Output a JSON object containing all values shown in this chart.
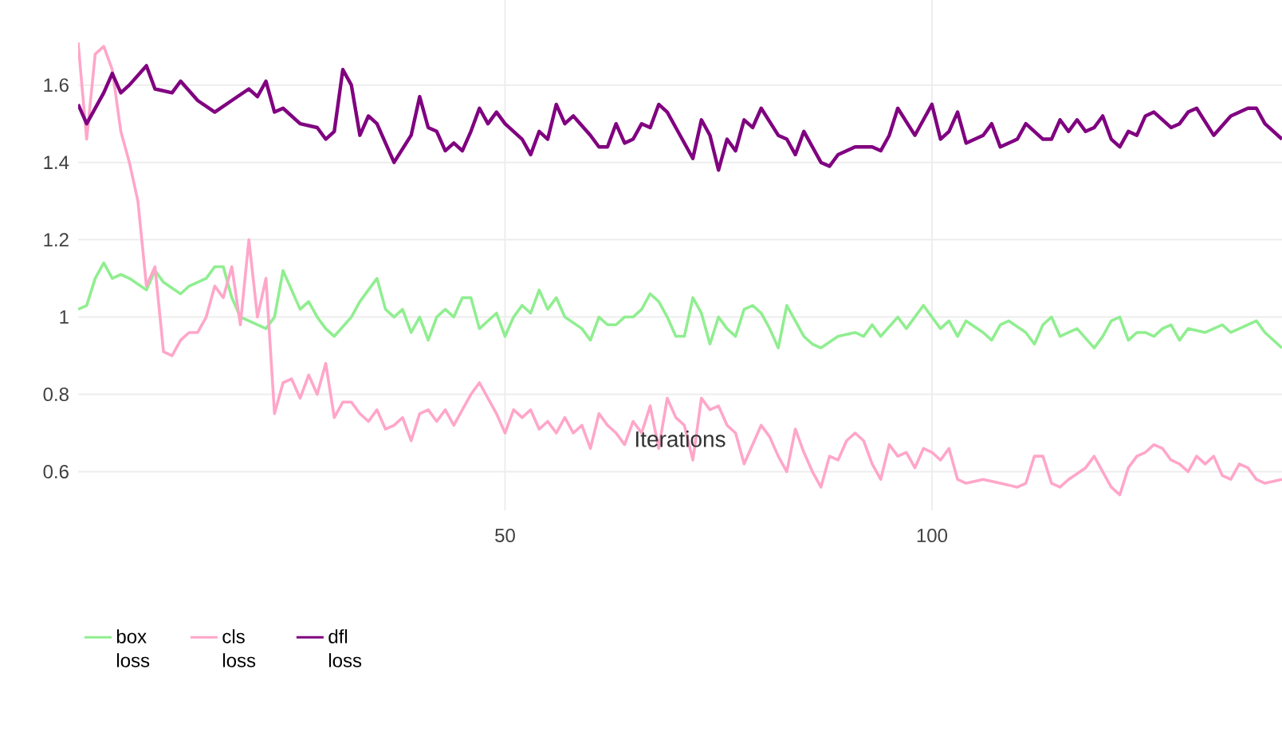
{
  "chart_data": {
    "type": "line",
    "xlabel": "Iterations",
    "xlim": [
      0,
      141
    ],
    "ylim": [
      0.5,
      1.82
    ],
    "xticks": [
      50,
      100
    ],
    "yticks": [
      0.6,
      0.8,
      1,
      1.2,
      1.4,
      1.6
    ],
    "grid": true,
    "legend": "bottom left",
    "line_style": "solid",
    "series": [
      {
        "name": "box loss",
        "color": "#90ee90",
        "x": [
          0,
          1,
          2,
          3,
          4,
          5,
          6,
          8,
          9,
          10,
          12,
          13,
          15,
          16,
          17,
          18,
          19,
          20,
          22,
          23,
          24,
          26,
          27,
          28,
          29,
          30,
          32,
          33,
          35,
          36,
          37,
          38,
          39,
          40,
          41,
          42,
          43,
          44,
          45,
          46,
          47,
          48,
          49,
          50,
          51,
          52,
          53,
          54,
          55,
          56,
          57,
          59,
          60,
          61,
          62,
          63,
          64,
          65,
          66,
          67,
          68,
          69,
          70,
          71,
          72,
          73,
          74,
          75,
          76,
          77,
          78,
          79,
          80,
          81,
          82,
          83,
          84,
          85,
          86,
          87,
          89,
          91,
          92,
          93,
          94,
          96,
          97,
          99,
          101,
          102,
          103,
          104,
          106,
          107,
          108,
          109,
          111,
          112,
          113,
          114,
          115,
          116,
          117,
          119,
          120,
          121,
          122,
          123,
          124,
          125,
          126,
          127,
          128,
          129,
          130,
          132,
          133,
          134,
          135,
          136,
          138,
          139,
          141
        ],
        "values": [
          1.02,
          1.03,
          1.1,
          1.14,
          1.1,
          1.11,
          1.1,
          1.07,
          1.12,
          1.09,
          1.06,
          1.08,
          1.1,
          1.13,
          1.13,
          1.05,
          1.0,
          0.99,
          0.97,
          1.0,
          1.12,
          1.02,
          1.04,
          1.0,
          0.97,
          0.95,
          1.0,
          1.04,
          1.1,
          1.02,
          1.0,
          1.02,
          0.96,
          1.0,
          0.94,
          1.0,
          1.02,
          1.0,
          1.05,
          1.05,
          0.97,
          0.99,
          1.01,
          0.95,
          1.0,
          1.03,
          1.01,
          1.07,
          1.02,
          1.05,
          1.0,
          0.97,
          0.94,
          1.0,
          0.98,
          0.98,
          1.0,
          1.0,
          1.02,
          1.06,
          1.04,
          1.0,
          0.95,
          0.95,
          1.05,
          1.01,
          0.93,
          1.0,
          0.97,
          0.95,
          1.02,
          1.03,
          1.01,
          0.97,
          0.92,
          1.03,
          0.99,
          0.95,
          0.93,
          0.92,
          0.95,
          0.96,
          0.95,
          0.98,
          0.95,
          1.0,
          0.97,
          1.03,
          0.97,
          0.99,
          0.95,
          0.99,
          0.96,
          0.94,
          0.98,
          0.99,
          0.96,
          0.93,
          0.98,
          1.0,
          0.95,
          0.96,
          0.97,
          0.92,
          0.95,
          0.99,
          1.0,
          0.94,
          0.96,
          0.96,
          0.95,
          0.97,
          0.98,
          0.94,
          0.97,
          0.96,
          0.97,
          0.98,
          0.96,
          0.97,
          0.99,
          0.96,
          0.92
        ]
      },
      {
        "name": "cls loss",
        "color": "#ffa6c9",
        "x": [
          0,
          1,
          2,
          3,
          4,
          5,
          6,
          7,
          8,
          9,
          10,
          11,
          12,
          13,
          14,
          15,
          16,
          17,
          18,
          19,
          20,
          21,
          22,
          23,
          24,
          25,
          26,
          27,
          28,
          29,
          30,
          31,
          32,
          33,
          34,
          35,
          36,
          37,
          38,
          39,
          40,
          41,
          42,
          43,
          44,
          45,
          46,
          47,
          48,
          49,
          50,
          51,
          52,
          53,
          54,
          55,
          56,
          57,
          58,
          59,
          60,
          61,
          62,
          63,
          64,
          65,
          66,
          67,
          68,
          69,
          70,
          71,
          72,
          73,
          74,
          75,
          76,
          77,
          78,
          79,
          80,
          81,
          82,
          83,
          84,
          85,
          86,
          87,
          88,
          89,
          90,
          91,
          92,
          93,
          94,
          95,
          96,
          97,
          98,
          99,
          100,
          101,
          102,
          103,
          104,
          106,
          108,
          110,
          111,
          112,
          113,
          114,
          115,
          116,
          118,
          119,
          120,
          121,
          122,
          123,
          124,
          125,
          126,
          127,
          128,
          129,
          130,
          131,
          132,
          133,
          134,
          135,
          136,
          137,
          138,
          139,
          141
        ],
        "values": [
          1.71,
          1.46,
          1.68,
          1.7,
          1.64,
          1.48,
          1.4,
          1.3,
          1.08,
          1.13,
          0.91,
          0.9,
          0.94,
          0.96,
          0.96,
          1.0,
          1.08,
          1.05,
          1.13,
          0.98,
          1.2,
          1.0,
          1.1,
          0.75,
          0.83,
          0.84,
          0.79,
          0.85,
          0.8,
          0.88,
          0.74,
          0.78,
          0.78,
          0.75,
          0.73,
          0.76,
          0.71,
          0.72,
          0.74,
          0.68,
          0.75,
          0.76,
          0.73,
          0.76,
          0.72,
          0.76,
          0.8,
          0.83,
          0.79,
          0.75,
          0.7,
          0.76,
          0.74,
          0.76,
          0.71,
          0.73,
          0.7,
          0.74,
          0.7,
          0.72,
          0.66,
          0.75,
          0.72,
          0.7,
          0.67,
          0.73,
          0.7,
          0.77,
          0.66,
          0.79,
          0.74,
          0.72,
          0.63,
          0.79,
          0.76,
          0.77,
          0.72,
          0.7,
          0.62,
          0.67,
          0.72,
          0.69,
          0.64,
          0.6,
          0.71,
          0.65,
          0.6,
          0.56,
          0.64,
          0.63,
          0.68,
          0.7,
          0.68,
          0.62,
          0.58,
          0.67,
          0.64,
          0.65,
          0.61,
          0.66,
          0.65,
          0.63,
          0.66,
          0.58,
          0.57,
          0.58,
          0.57,
          0.56,
          0.57,
          0.64,
          0.64,
          0.57,
          0.56,
          0.58,
          0.61,
          0.64,
          0.6,
          0.56,
          0.54,
          0.61,
          0.64,
          0.65,
          0.67,
          0.66,
          0.63,
          0.62,
          0.6,
          0.64,
          0.62,
          0.64,
          0.59,
          0.58,
          0.62,
          0.61,
          0.58,
          0.57,
          0.58
        ]
      },
      {
        "name": "dfl loss",
        "color": "#800080",
        "x": [
          0,
          1,
          3,
          4,
          5,
          6,
          8,
          9,
          11,
          12,
          14,
          16,
          18,
          20,
          21,
          22,
          23,
          24,
          26,
          28,
          29,
          30,
          31,
          32,
          33,
          34,
          35,
          37,
          39,
          40,
          41,
          42,
          43,
          44,
          45,
          46,
          47,
          48,
          49,
          50,
          52,
          53,
          54,
          55,
          56,
          57,
          58,
          60,
          61,
          62,
          63,
          64,
          65,
          66,
          67,
          68,
          69,
          70,
          72,
          73,
          74,
          75,
          76,
          77,
          78,
          79,
          80,
          82,
          83,
          84,
          85,
          87,
          88,
          89,
          91,
          93,
          94,
          95,
          96,
          98,
          99,
          100,
          101,
          102,
          103,
          104,
          106,
          107,
          108,
          110,
          111,
          113,
          114,
          115,
          116,
          117,
          118,
          119,
          120,
          121,
          122,
          123,
          124,
          125,
          126,
          128,
          129,
          130,
          131,
          133,
          135,
          137,
          138,
          139,
          141
        ],
        "values": [
          1.55,
          1.5,
          1.58,
          1.63,
          1.58,
          1.6,
          1.65,
          1.59,
          1.58,
          1.61,
          1.56,
          1.53,
          1.56,
          1.59,
          1.57,
          1.61,
          1.53,
          1.54,
          1.5,
          1.49,
          1.46,
          1.48,
          1.64,
          1.6,
          1.47,
          1.52,
          1.5,
          1.4,
          1.47,
          1.57,
          1.49,
          1.48,
          1.43,
          1.45,
          1.43,
          1.48,
          1.54,
          1.5,
          1.53,
          1.5,
          1.46,
          1.42,
          1.48,
          1.46,
          1.55,
          1.5,
          1.52,
          1.47,
          1.44,
          1.44,
          1.5,
          1.45,
          1.46,
          1.5,
          1.49,
          1.55,
          1.53,
          1.49,
          1.41,
          1.51,
          1.47,
          1.38,
          1.46,
          1.43,
          1.51,
          1.49,
          1.54,
          1.47,
          1.46,
          1.42,
          1.48,
          1.4,
          1.39,
          1.42,
          1.44,
          1.44,
          1.43,
          1.47,
          1.54,
          1.47,
          1.51,
          1.55,
          1.46,
          1.48,
          1.53,
          1.45,
          1.47,
          1.5,
          1.44,
          1.46,
          1.5,
          1.46,
          1.46,
          1.51,
          1.48,
          1.51,
          1.48,
          1.49,
          1.52,
          1.46,
          1.44,
          1.48,
          1.47,
          1.52,
          1.53,
          1.49,
          1.5,
          1.53,
          1.54,
          1.47,
          1.52,
          1.54,
          1.54,
          1.5,
          1.46
        ]
      }
    ]
  }
}
